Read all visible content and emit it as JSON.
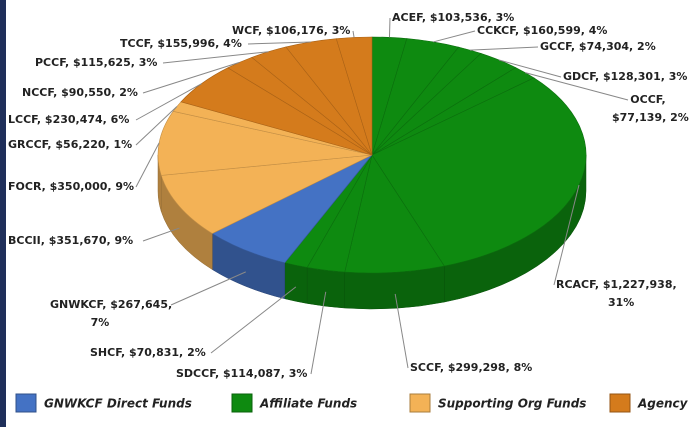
{
  "chart_data": {
    "type": "pie",
    "categories": [
      "ACEF",
      "CCKCF",
      "GCCF",
      "GDCF",
      "OCCF",
      "RCACF",
      "SCCF",
      "SDCCF",
      "SHCF",
      "GNWKCF",
      "BCCII",
      "FOCR",
      "GRCCF",
      "LCCF",
      "NCCF",
      "PCCF",
      "TCCF",
      "WCF"
    ],
    "values": [
      103536,
      160599,
      74304,
      128301,
      77139,
      1227938,
      299298,
      114087,
      70831,
      267645,
      351670,
      350000,
      56220,
      230474,
      90550,
      115625,
      155996,
      106176
    ],
    "value_labels": [
      [
        "ACEF, $103,536, 3%"
      ],
      [
        "CCKCF, $160,599, 4%"
      ],
      [
        "GCCF, $74,304, 2%"
      ],
      [
        "GDCF, $128,301, 3%"
      ],
      [
        "OCCF,",
        "$77,139, 2%"
      ],
      [
        "RCACF, $1,227,938,",
        "31%"
      ],
      [
        "SCCF, $299,298, 8%"
      ],
      [
        "SDCCF, $114,087, 3%"
      ],
      [
        "SHCF, $70,831, 2%"
      ],
      [
        "GNWKCF, $267,645,",
        "7%"
      ],
      [
        "BCCII, $351,670, 9%"
      ],
      [
        "FOCR, $350,000, 9%"
      ],
      [
        "GRCCF, $56,220, 1%"
      ],
      [
        "LCCF, $230,474, 6%"
      ],
      [
        "NCCF, $90,550, 2%"
      ],
      [
        "PCCF, $115,625, 3%"
      ],
      [
        "TCCF, $155,996, 4%"
      ],
      [
        "WCF, $106,176, 3%"
      ]
    ],
    "groups": [
      1,
      1,
      1,
      1,
      1,
      1,
      1,
      1,
      1,
      0,
      2,
      2,
      2,
      3,
      3,
      3,
      3,
      3
    ],
    "legend": [
      {
        "name": "GNWKCF Direct Funds",
        "color": "#4472c4"
      },
      {
        "name": "Affiliate Funds",
        "color": "#0e8a10"
      },
      {
        "name": "Supporting Org Funds",
        "color": "#f3b256"
      },
      {
        "name": "Agency Funds",
        "color": "#d47b1c"
      }
    ]
  }
}
